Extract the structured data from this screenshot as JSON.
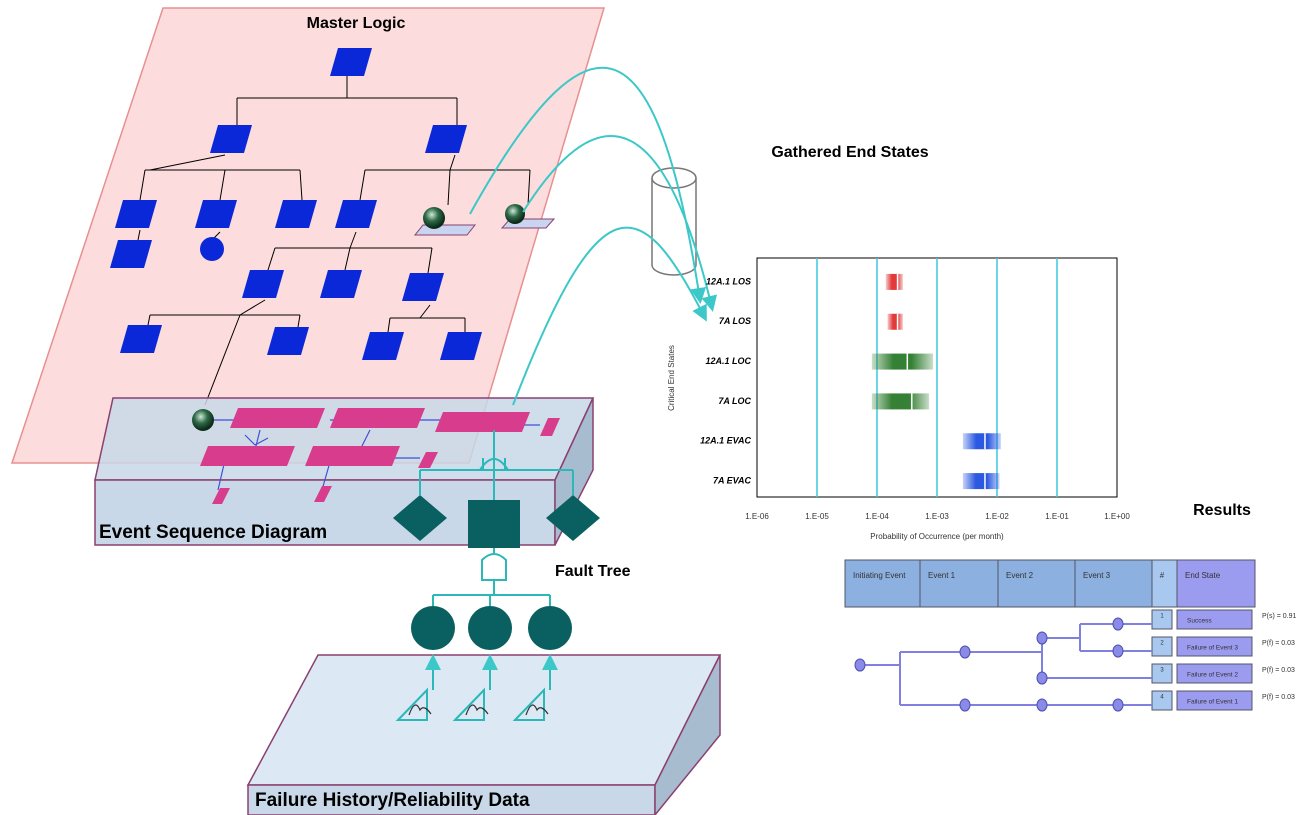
{
  "master_logic": {
    "title": "Master Logic"
  },
  "gathered_end_states": {
    "title": "Gathered End States"
  },
  "end_state_chart": {
    "y_label": "Critical End States",
    "x_label": "Probability of Occurrence (per month)",
    "x_scale": "log",
    "xlim": [
      1e-06,
      1
    ],
    "xticks": [
      {
        "value": 1e-06,
        "label": "1.E-06"
      },
      {
        "value": 1e-05,
        "label": "1.E-05"
      },
      {
        "value": 0.0001,
        "label": "1.E-04"
      },
      {
        "value": 0.001,
        "label": "1.E-03"
      },
      {
        "value": 0.01,
        "label": "1.E-02"
      },
      {
        "value": 0.1,
        "label": "1.E-01"
      },
      {
        "value": 1,
        "label": "1.E+00"
      }
    ],
    "ranges": [
      {
        "name": "12A.1 LOS",
        "low": 0.00014,
        "mid": 0.00022,
        "high": 0.00027,
        "color": "#e03030"
      },
      {
        "name": "7A LOS",
        "low": 0.00015,
        "mid": 0.00022,
        "high": 0.00027,
        "color": "#e03030"
      },
      {
        "name": "12A.1 LOC",
        "low": 8.2e-05,
        "mid": 0.00032,
        "high": 0.00086,
        "color": "#2a7a2a"
      },
      {
        "name": "7A LOC",
        "low": 8.2e-05,
        "mid": 0.00038,
        "high": 0.00074,
        "color": "#2a7a2a"
      },
      {
        "name": "12A.1 EVAC",
        "low": 0.0027,
        "mid": 0.0063,
        "high": 0.0116,
        "color": "#2050e0"
      },
      {
        "name": "7A EVAC",
        "low": 0.0027,
        "mid": 0.0063,
        "high": 0.011,
        "color": "#2050e0"
      }
    ]
  },
  "event_sequence_diagram": {
    "title": "Event Sequence Diagram"
  },
  "fault_tree": {
    "title": "Fault Tree"
  },
  "failure_data": {
    "title": "Failure History/Reliability Data"
  },
  "results": {
    "title": "Results",
    "event_tree": {
      "headers": [
        "Initiating Event",
        "Event 1",
        "Event 2",
        "Event 3",
        "#",
        "End State"
      ],
      "rows": [
        {
          "number": 1,
          "end_state": "Success",
          "probability": "P(s) = 0.91"
        },
        {
          "number": 2,
          "end_state": "Failure of Event 3",
          "probability": "P(f) = 0.03"
        },
        {
          "number": 3,
          "end_state": "Failure of Event 2",
          "probability": "P(f) = 0.03"
        },
        {
          "number": 4,
          "end_state": "Failure of Event 1",
          "probability": "P(f) = 0.03"
        }
      ]
    }
  }
}
